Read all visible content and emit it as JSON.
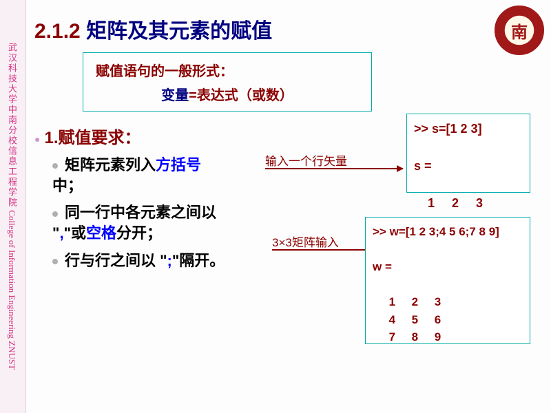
{
  "sidebar": {
    "text_cn": "武汉科技大学中南分校信息工程学院",
    "text_en": "  College of Information Engineering  ZNUST"
  },
  "title": {
    "number": "2.1.2",
    "text": " 矩阵及其元素的赋值"
  },
  "formula": {
    "line1": "赋值语句的一般形式：",
    "var": "变量",
    "eq": "=",
    "expr": "表达式（或数）",
    "border_color": "#00aaaa"
  },
  "section": {
    "label": "1.赋值要求："
  },
  "bullets": [
    {
      "pre": "矩阵元素列入",
      "blue": "方括号",
      "post": "中；"
    },
    {
      "pre": "同一行中各元素之间以 \"",
      "blue": ",",
      "mid": "\"或",
      "blue2": "空格",
      "post": "分开；"
    },
    {
      "pre": "行与行之间以 \"",
      "blue": ";",
      "post": "\"隔开。"
    }
  ],
  "annotations": {
    "row_vec": "输入一个行矢量",
    "matrix_3x3": "3×3矩阵输入",
    "arrow_color": "#8b0000"
  },
  "code1": {
    "input": ">> s=[1 2 3]",
    "out_label": "s =",
    "out_row": "    1     2     3",
    "border_color": "#00aaaa"
  },
  "code2": {
    "input": ">> w=[1 2 3;4 5 6;7 8 9]",
    "out_label": "w =",
    "rows": [
      "     1     2     3",
      "     4     5     6",
      "     7     8     9"
    ],
    "border_color": "#00aaaa"
  },
  "colors": {
    "dark_red": "#8b0000",
    "dark_blue": "#000080",
    "blue": "#0000ff",
    "teal": "#00aaaa",
    "sidebar_bg": "#f8f0f5",
    "sidebar_text": "#d63384"
  }
}
